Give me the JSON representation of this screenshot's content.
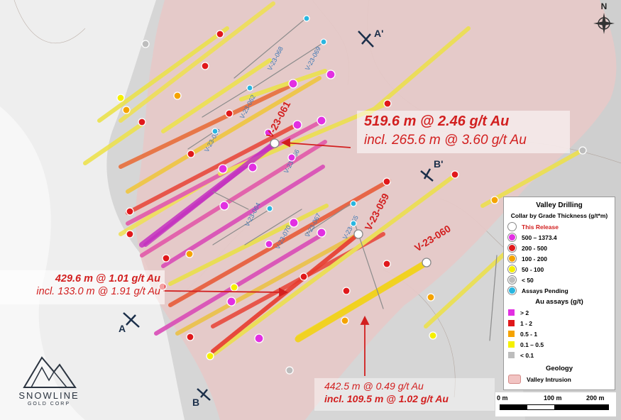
{
  "callouts": {
    "c1": {
      "main": "519.6 m @ 2.46 g/t Au",
      "sub": "incl. 265.6 m @ 3.60 g/t Au"
    },
    "c2": {
      "main": "429.6 m @ 1.01 g/t Au",
      "sub": "incl. 133.0 m @ 1.91 g/t Au"
    },
    "c3": {
      "main": "442.5 m @ 0.49 g/t Au",
      "sub": "incl. 109.5 m @ 1.02 g/t Au"
    }
  },
  "holes_release": [
    "V-23-061",
    "V-23-059",
    "V-23-060"
  ],
  "holes_pending": [
    "V-23-068",
    "V-23-069",
    "V-23-062",
    "V-23-063",
    "V-23-066",
    "V-23-064",
    "V-23-067",
    "V-23-065",
    "V-23-070"
  ],
  "sections": {
    "a": "A",
    "a2": "A'",
    "b": "B",
    "b2": "B'"
  },
  "north": "N",
  "legend": {
    "title": "Valley Drilling",
    "collar_title": "Collar by Grade Thickness (g/t*m)",
    "collar_items": [
      {
        "label": "This Release",
        "color": "#ffffff"
      },
      {
        "label": "500 – 1373.4",
        "color": "#e22fe2"
      },
      {
        "label": "200 - 500",
        "color": "#e0181b"
      },
      {
        "label": "100 - 200",
        "color": "#f5a300"
      },
      {
        "label": "50 - 100",
        "color": "#f5f000"
      },
      {
        "label": "< 50",
        "color": "#bdbdbd"
      },
      {
        "label": "Assays Pending",
        "color": "#29b6e0"
      }
    ],
    "assay_title": "Au assays (g/t)",
    "assay_items": [
      {
        "label": "> 2",
        "color": "#e22fe2"
      },
      {
        "label": "1 - 2",
        "color": "#e0181b"
      },
      {
        "label": "0.5 - 1",
        "color": "#f5a300"
      },
      {
        "label": "0.1 – 0.5",
        "color": "#f5f000"
      },
      {
        "label": "< 0.1",
        "color": "#bdbdbd"
      }
    ],
    "geology_title": "Geology",
    "geology_item": "Valley Intrusion"
  },
  "scale": {
    "s0": "0 m",
    "s1": "100 m",
    "s2": "200 m"
  },
  "logo": {
    "name": "SNOWLINE",
    "corp": "GOLD CORP"
  }
}
